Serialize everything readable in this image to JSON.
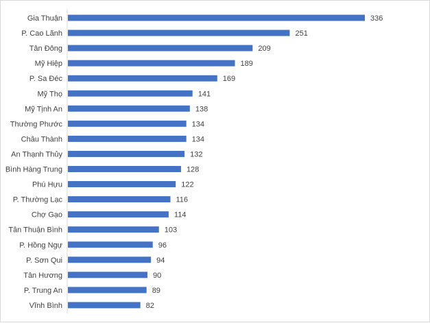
{
  "chart_data": {
    "type": "bar",
    "orientation": "horizontal",
    "categories": [
      "Gia Thuận",
      "P. Cao Lãnh",
      "Tân Đông",
      "Mỹ Hiệp",
      "P. Sa Đéc",
      "Mỹ Thọ",
      "Mỹ Tịnh An",
      "Thường Phước",
      "Châu Thành",
      "An Thạnh Thủy",
      "Bình Hàng Trung",
      "Phú Hựu",
      "P. Thường Lạc",
      "Chợ Gạo",
      "Tân Thuận Bình",
      "P. Hồng Ngự",
      "P. Sơn Qui",
      "Tân Hương",
      "P. Trung An",
      "Vĩnh Bình"
    ],
    "values": [
      336,
      251,
      209,
      189,
      169,
      141,
      138,
      134,
      134,
      132,
      128,
      122,
      116,
      114,
      103,
      96,
      94,
      90,
      89,
      82
    ],
    "title": "",
    "xlabel": "",
    "ylabel": "",
    "xlim": [
      0,
      336
    ],
    "grid": false,
    "legend": "none",
    "bar_color": "#4472c4",
    "axis_color": "#d9d9d9",
    "text_color": "#404040"
  }
}
